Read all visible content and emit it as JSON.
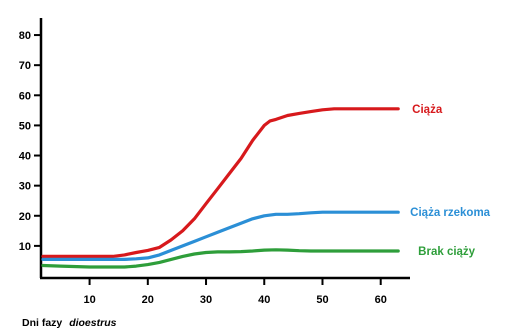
{
  "chart_data": {
    "type": "line",
    "title": "",
    "xlabel": "Dni fazy",
    "xlabel_italic": "diοestrus",
    "ylabel": "",
    "xlim": [
      2,
      64
    ],
    "ylim": [
      0,
      85
    ],
    "xticks": [
      10,
      20,
      30,
      40,
      50,
      60
    ],
    "yticks": [
      10,
      20,
      30,
      40,
      50,
      60,
      70,
      80
    ],
    "grid": false,
    "legend": "inline-right",
    "series": [
      {
        "name": "Ciąża",
        "color": "#d7191c",
        "x": [
          2,
          5,
          10,
          14,
          16,
          18,
          20,
          22,
          24,
          26,
          28,
          30,
          32,
          34,
          36,
          38,
          40,
          41,
          42,
          44,
          46,
          48,
          50,
          52,
          56,
          60,
          63
        ],
        "y": [
          6.5,
          6.5,
          6.5,
          6.5,
          7,
          7.8,
          8.5,
          9.5,
          12,
          15,
          19,
          24,
          29,
          34,
          39,
          45,
          50,
          51.5,
          52,
          53.3,
          54,
          54.6,
          55.2,
          55.5,
          55.5,
          55.5,
          55.5
        ]
      },
      {
        "name": "Ciąża rzekoma",
        "color": "#2b8fd6",
        "x": [
          2,
          5,
          10,
          14,
          16,
          18,
          20,
          22,
          24,
          26,
          28,
          30,
          32,
          34,
          36,
          38,
          40,
          42,
          44,
          46,
          48,
          50,
          52,
          56,
          60,
          63
        ],
        "y": [
          5.5,
          5.5,
          5.5,
          5.5,
          5.5,
          5.7,
          6,
          7,
          8.5,
          10,
          11.5,
          13,
          14.5,
          16,
          17.5,
          19,
          20,
          20.5,
          20.5,
          20.7,
          21,
          21.2,
          21.2,
          21.2,
          21.2,
          21.2
        ]
      },
      {
        "name": "Brak ciąży",
        "color": "#2e9e3a",
        "x": [
          2,
          5,
          10,
          14,
          16,
          18,
          20,
          22,
          24,
          26,
          28,
          30,
          32,
          34,
          36,
          38,
          40,
          42,
          44,
          46,
          48,
          52,
          56,
          60,
          63
        ],
        "y": [
          3.5,
          3.3,
          3.0,
          3.0,
          3.0,
          3.3,
          3.8,
          4.5,
          5.5,
          6.5,
          7.3,
          7.8,
          8.0,
          8.0,
          8.1,
          8.3,
          8.6,
          8.7,
          8.6,
          8.4,
          8.3,
          8.3,
          8.3,
          8.3,
          8.3
        ]
      }
    ]
  }
}
